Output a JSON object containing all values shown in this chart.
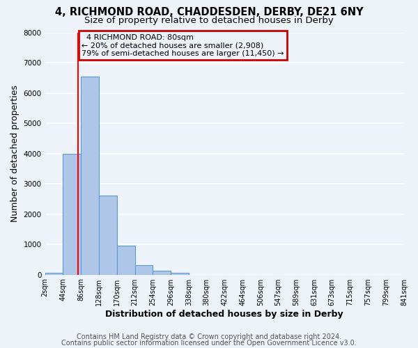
{
  "title_line1": "4, RICHMOND ROAD, CHADDESDEN, DERBY, DE21 6NY",
  "title_line2": "Size of property relative to detached houses in Derby",
  "xlabel": "Distribution of detached houses by size in Derby",
  "ylabel": "Number of detached properties",
  "bar_left_edges": [
    2,
    44,
    86,
    128,
    170,
    212,
    254,
    296,
    338,
    380,
    422,
    464,
    506,
    547,
    589,
    631,
    673,
    715,
    757,
    799
  ],
  "bar_heights": [
    60,
    4000,
    6550,
    2600,
    960,
    320,
    130,
    60,
    0,
    0,
    0,
    0,
    0,
    0,
    0,
    0,
    0,
    0,
    0,
    0
  ],
  "bin_width": 42,
  "tick_labels": [
    "2sqm",
    "44sqm",
    "86sqm",
    "128sqm",
    "170sqm",
    "212sqm",
    "254sqm",
    "296sqm",
    "338sqm",
    "380sqm",
    "422sqm",
    "464sqm",
    "506sqm",
    "547sqm",
    "589sqm",
    "631sqm",
    "673sqm",
    "715sqm",
    "757sqm",
    "799sqm",
    "841sqm"
  ],
  "bar_color": "#aec6e8",
  "bar_edge_color": "#5b9bd5",
  "property_line_x": 80,
  "property_label": "4 RICHMOND ROAD: 80sqm",
  "annotation_line1": "← 20% of detached houses are smaller (2,908)",
  "annotation_line2": "79% of semi-detached houses are larger (11,450) →",
  "box_color": "#cc0000",
  "ylim": [
    0,
    8000
  ],
  "yticks": [
    0,
    1000,
    2000,
    3000,
    4000,
    5000,
    6000,
    7000,
    8000
  ],
  "footer1": "Contains HM Land Registry data © Crown copyright and database right 2024.",
  "footer2": "Contains public sector information licensed under the Open Government Licence v3.0.",
  "bg_color": "#eef2f9",
  "grid_color": "#ffffff",
  "title_fontsize": 10.5,
  "subtitle_fontsize": 9.5,
  "axis_label_fontsize": 9,
  "tick_fontsize": 7,
  "footer_fontsize": 7,
  "annotation_fontsize": 8
}
